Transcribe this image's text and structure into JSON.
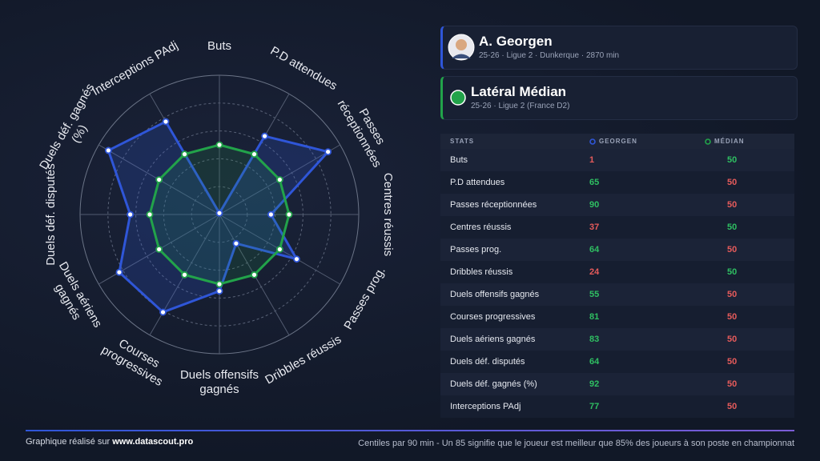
{
  "chart_data": {
    "type": "radar",
    "categories": [
      "Buts",
      "P.D attendues",
      "Passes réceptionnées",
      "Centres réussis",
      "Passes prog.",
      "Dribbles réussis",
      "Duels offensifs gagnés",
      "Courses progressives",
      "Duels aériens gagnés",
      "Duels déf. disputés",
      "Duels déf. gagnés (%)",
      "Interceptions PAdj"
    ],
    "series": [
      {
        "name": "GEORGEN",
        "color": "#2f56d8",
        "values": [
          1,
          65,
          90,
          37,
          64,
          24,
          55,
          81,
          83,
          64,
          92,
          77
        ]
      },
      {
        "name": "MÉDIAN",
        "color": "#22a34a",
        "values": [
          50,
          50,
          50,
          50,
          50,
          50,
          50,
          50,
          50,
          50,
          50,
          50
        ]
      }
    ],
    "rlim": [
      0,
      100
    ],
    "rticks": [
      20,
      40,
      60,
      80,
      100
    ],
    "grid": true
  },
  "player": {
    "name": "A. Georgen",
    "info": "25-26 · Ligue 2 · Dunkerque · 2870 min"
  },
  "profile": {
    "name": "Latéral Médian",
    "info": "25-26 · Ligue 2 (France D2)"
  },
  "table": {
    "header": "STATS"
  },
  "footer": {
    "credit": "Graphique réalisé sur",
    "site": "www.datascout.pro",
    "note": "Centiles par 90 min - Un 85 signifie que le joueur est meilleur que 85% des joueurs à son poste en championnat"
  }
}
